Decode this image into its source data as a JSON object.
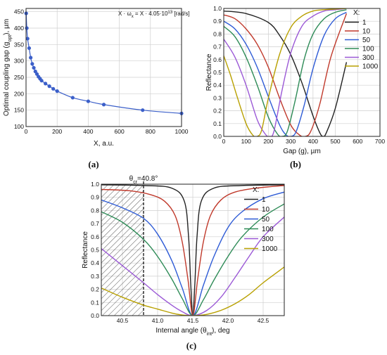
{
  "chart_data": [
    {
      "id": "a",
      "type": "scatter",
      "panel_label": "(a)",
      "xlabel": "X, a.u.",
      "ylabel_main": "Optimal coupling gap (g",
      "ylabel_sub": "opt",
      "ylabel_tail": "), µm",
      "annotation_main": "X · ω",
      "annotation_sub": "x",
      "annotation_mid": " = X · 4.05·10",
      "annotation_sup": "13",
      "annotation_tail": " [rad/s]",
      "xlim": [
        0,
        1000
      ],
      "ylim": [
        100,
        460
      ],
      "xticks": [
        "0",
        "200",
        "400",
        "600",
        "800",
        "1000"
      ],
      "yticks": [
        "100",
        "150",
        "200",
        "250",
        "300",
        "350",
        "400",
        "450"
      ],
      "grid": true,
      "marker_color": "#3b5fc9",
      "points": [
        [
          1,
          445
        ],
        [
          5,
          400
        ],
        [
          10,
          368
        ],
        [
          20,
          339
        ],
        [
          30,
          310
        ],
        [
          40,
          291
        ],
        [
          50,
          279
        ],
        [
          60,
          268
        ],
        [
          70,
          260
        ],
        [
          80,
          252
        ],
        [
          90,
          246
        ],
        [
          100,
          240
        ],
        [
          125,
          231
        ],
        [
          150,
          223
        ],
        [
          175,
          215
        ],
        [
          200,
          208
        ],
        [
          300,
          188
        ],
        [
          400,
          177
        ],
        [
          500,
          167
        ],
        [
          750,
          150
        ],
        [
          1000,
          140
        ]
      ]
    },
    {
      "id": "b",
      "type": "line",
      "panel_label": "(b)",
      "xlabel": "Gap (g), µm",
      "ylabel": "Reflectance",
      "legend_title": "X:",
      "legend_position": "top-right",
      "xlim": [
        0,
        700
      ],
      "ylim": [
        0,
        1
      ],
      "xticks": [
        "0",
        "100",
        "200",
        "300",
        "400",
        "500",
        "600",
        "700"
      ],
      "yticks": [
        "0.0",
        "0.1",
        "0.2",
        "0.3",
        "0.4",
        "0.5",
        "0.6",
        "0.7",
        "0.8",
        "0.9",
        "1.0"
      ],
      "grid": true,
      "series": [
        {
          "name": "1",
          "color": "#222222",
          "x": [
            0,
            100,
            200,
            250,
            300,
            350,
            400,
            430,
            445,
            460,
            500,
            550
          ],
          "y": [
            0.98,
            0.96,
            0.89,
            0.79,
            0.64,
            0.42,
            0.16,
            0.03,
            0.0,
            0.03,
            0.22,
            0.58
          ]
        },
        {
          "name": "10",
          "color": "#c0392b",
          "x": [
            0,
            50,
            100,
            150,
            200,
            250,
            300,
            340,
            365,
            390,
            430,
            480,
            550
          ],
          "y": [
            0.95,
            0.92,
            0.84,
            0.72,
            0.54,
            0.3,
            0.09,
            0.01,
            0.0,
            0.04,
            0.25,
            0.62,
            0.96
          ]
        },
        {
          "name": "50",
          "color": "#2e5bd6",
          "x": [
            0,
            50,
            100,
            150,
            200,
            250,
            280,
            302,
            325,
            360,
            400,
            450,
            500,
            550
          ],
          "y": [
            0.9,
            0.84,
            0.72,
            0.54,
            0.31,
            0.09,
            0.01,
            0.0,
            0.04,
            0.24,
            0.53,
            0.79,
            0.92,
            0.97
          ]
        },
        {
          "name": "100",
          "color": "#2e8b57",
          "x": [
            0,
            50,
            100,
            150,
            200,
            240,
            262,
            285,
            320,
            360,
            400,
            450,
            500,
            550
          ],
          "y": [
            0.86,
            0.78,
            0.62,
            0.4,
            0.15,
            0.02,
            0.0,
            0.04,
            0.28,
            0.6,
            0.8,
            0.92,
            0.97,
            0.99
          ]
        },
        {
          "name": "300",
          "color": "#9b59d6",
          "x": [
            0,
            50,
            100,
            150,
            185,
            205,
            225,
            260,
            300,
            350,
            400,
            450,
            500,
            550
          ],
          "y": [
            0.76,
            0.62,
            0.4,
            0.13,
            0.02,
            0.0,
            0.04,
            0.35,
            0.65,
            0.86,
            0.94,
            0.98,
            0.99,
            1.0
          ]
        },
        {
          "name": "1000",
          "color": "#b8a000",
          "x": [
            0,
            30,
            60,
            100,
            130,
            150,
            170,
            200,
            250,
            300,
            350,
            400,
            450,
            550
          ],
          "y": [
            0.63,
            0.48,
            0.31,
            0.1,
            0.01,
            0.0,
            0.05,
            0.3,
            0.64,
            0.85,
            0.94,
            0.98,
            0.99,
            1.0
          ]
        }
      ]
    },
    {
      "id": "c",
      "type": "line",
      "panel_label": "(c)",
      "xlabel_main": "Internal angle (θ",
      "xlabel_sub": "int",
      "xlabel_tail": "), deg",
      "ylabel": "Reflectance",
      "legend_title": "X:",
      "legend_position": "top-right",
      "crit_label_main": "θ",
      "crit_label_sub": "cr",
      "crit_label_tail": "=40.8°",
      "crit_angle": 40.8,
      "xlim": [
        40.2,
        42.8
      ],
      "ylim": [
        0,
        1
      ],
      "xticks": [
        {
          "v": 40.5,
          "label": "40.5"
        },
        {
          "v": 41.0,
          "label": "41.0"
        },
        {
          "v": 41.5,
          "label": "41.5"
        },
        {
          "v": 42.0,
          "label": "42.0"
        },
        {
          "v": 42.5,
          "label": "42.5"
        }
      ],
      "yticks": [
        "0.0",
        "0.1",
        "0.2",
        "0.3",
        "0.4",
        "0.5",
        "0.6",
        "0.7",
        "0.8",
        "0.9",
        "1.0"
      ],
      "grid": true,
      "series": [
        {
          "name": "1",
          "color": "#222222",
          "x": [
            40.2,
            40.8,
            41.2,
            41.38,
            41.44,
            41.47,
            41.5,
            41.53,
            41.56,
            41.62,
            41.8,
            42.2,
            42.8
          ],
          "y": [
            0.995,
            0.99,
            0.97,
            0.87,
            0.6,
            0.25,
            0.0,
            0.25,
            0.6,
            0.87,
            0.97,
            0.99,
            0.995
          ]
        },
        {
          "name": "10",
          "color": "#c0392b",
          "x": [
            40.2,
            40.6,
            40.9,
            41.1,
            41.25,
            41.35,
            41.43,
            41.5,
            41.57,
            41.65,
            41.75,
            41.9,
            42.1,
            42.4,
            42.8
          ],
          "y": [
            0.96,
            0.95,
            0.92,
            0.87,
            0.76,
            0.56,
            0.28,
            0.0,
            0.28,
            0.56,
            0.76,
            0.88,
            0.94,
            0.97,
            0.99
          ]
        },
        {
          "name": "50",
          "color": "#2e5bd6",
          "x": [
            40.2,
            40.5,
            40.8,
            41.0,
            41.2,
            41.35,
            41.5,
            41.65,
            41.8,
            42.0,
            42.2,
            42.5,
            42.8
          ],
          "y": [
            0.88,
            0.82,
            0.74,
            0.62,
            0.42,
            0.21,
            0.0,
            0.23,
            0.45,
            0.67,
            0.79,
            0.89,
            0.94
          ]
        },
        {
          "name": "100",
          "color": "#2e8b57",
          "x": [
            40.2,
            40.5,
            40.8,
            41.0,
            41.2,
            41.35,
            41.5,
            41.65,
            41.8,
            42.0,
            42.2,
            42.5,
            42.8
          ],
          "y": [
            0.79,
            0.71,
            0.58,
            0.45,
            0.28,
            0.13,
            0.0,
            0.12,
            0.27,
            0.45,
            0.6,
            0.75,
            0.85
          ]
        },
        {
          "name": "300",
          "color": "#9b59d6",
          "x": [
            40.2,
            40.5,
            40.8,
            41.0,
            41.2,
            41.35,
            41.5,
            41.7,
            41.9,
            42.1,
            42.3,
            42.5,
            42.8
          ],
          "y": [
            0.51,
            0.38,
            0.25,
            0.16,
            0.08,
            0.03,
            0.0,
            0.04,
            0.14,
            0.29,
            0.45,
            0.6,
            0.75
          ]
        },
        {
          "name": "1000",
          "color": "#b8a000",
          "x": [
            40.2,
            40.5,
            40.8,
            41.0,
            41.2,
            41.35,
            41.5,
            41.7,
            41.9,
            42.1,
            42.3,
            42.5,
            42.8
          ],
          "y": [
            0.21,
            0.14,
            0.08,
            0.05,
            0.02,
            0.005,
            0.0,
            0.01,
            0.04,
            0.09,
            0.16,
            0.25,
            0.37
          ]
        }
      ]
    }
  ]
}
